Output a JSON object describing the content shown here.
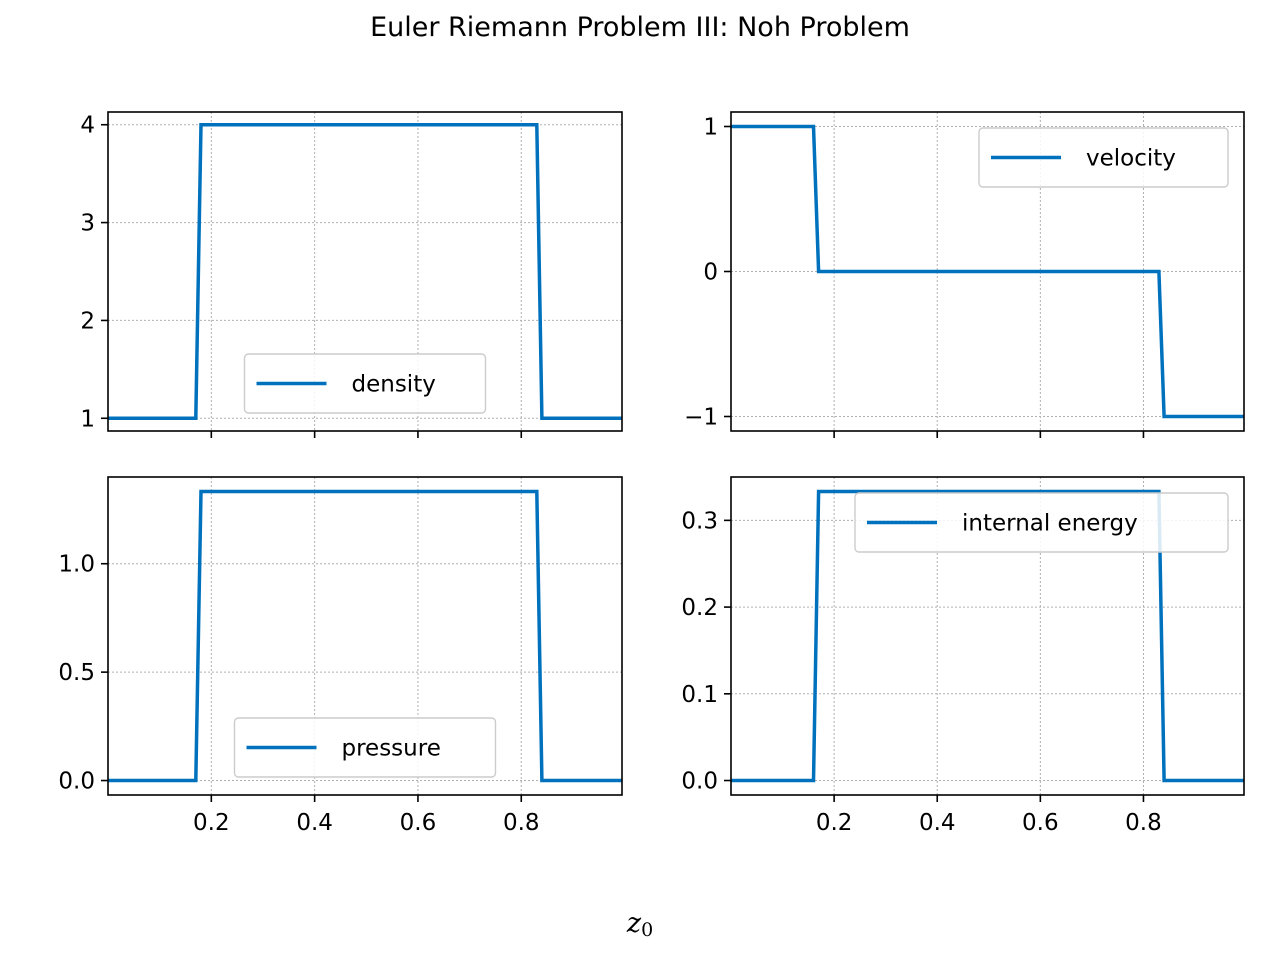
{
  "figure": {
    "title": "Euler Riemann Problem III: Noh Problem",
    "xlabel_main": "z",
    "xlabel_sub": "0"
  },
  "line_color": "#0072bd",
  "chart_data": [
    {
      "type": "line",
      "series": [
        {
          "name": "density",
          "x": [
            0.0,
            0.17,
            0.18,
            0.83,
            0.84,
            1.0
          ],
          "y": [
            1,
            1,
            4,
            4,
            1,
            1
          ]
        }
      ],
      "xlim": [
        0.0,
        0.995
      ],
      "ylim": [
        0.87,
        4.13
      ],
      "xticks": [
        0.2,
        0.4,
        0.6,
        0.8
      ],
      "xticklabels": [
        "",
        "",
        "",
        ""
      ],
      "yticks": [
        1,
        2,
        3,
        4
      ],
      "yticklabels": [
        "1",
        "2",
        "3",
        "4"
      ],
      "grid": true,
      "legend_position": "lower-center"
    },
    {
      "type": "line",
      "series": [
        {
          "name": "velocity",
          "x": [
            0.0,
            0.16,
            0.17,
            0.83,
            0.84,
            1.0
          ],
          "y": [
            1,
            1,
            0,
            0,
            -1,
            -1
          ]
        }
      ],
      "xlim": [
        0.0,
        0.995
      ],
      "ylim": [
        -1.1,
        1.1
      ],
      "xticks": [
        0.2,
        0.4,
        0.6,
        0.8
      ],
      "xticklabels": [
        "",
        "",
        "",
        ""
      ],
      "yticks": [
        -1,
        0,
        1
      ],
      "yticklabels": [
        "−1",
        "0",
        "1"
      ],
      "grid": true,
      "legend_position": "upper-right"
    },
    {
      "type": "line",
      "series": [
        {
          "name": "pressure",
          "x": [
            0.0,
            0.17,
            0.18,
            0.83,
            0.84,
            1.0
          ],
          "y": [
            0,
            0,
            1.3333,
            1.3333,
            0,
            0
          ]
        }
      ],
      "xlim": [
        0.0,
        0.995
      ],
      "ylim": [
        -0.0667,
        1.4
      ],
      "xticks": [
        0.2,
        0.4,
        0.6,
        0.8
      ],
      "xticklabels": [
        "0.2",
        "0.4",
        "0.6",
        "0.8"
      ],
      "yticks": [
        0.0,
        0.5,
        1.0
      ],
      "yticklabels": [
        "0.0",
        "0.5",
        "1.0"
      ],
      "grid": true,
      "legend_position": "lower-center"
    },
    {
      "type": "line",
      "series": [
        {
          "name": "internal energy",
          "x": [
            0.0,
            0.16,
            0.17,
            0.83,
            0.84,
            1.0
          ],
          "y": [
            0,
            0,
            0.3333,
            0.3333,
            0,
            0
          ]
        }
      ],
      "xlim": [
        0.0,
        0.995
      ],
      "ylim": [
        -0.0167,
        0.35
      ],
      "xticks": [
        0.2,
        0.4,
        0.6,
        0.8
      ],
      "xticklabels": [
        "0.2",
        "0.4",
        "0.6",
        "0.8"
      ],
      "yticks": [
        0.0,
        0.1,
        0.2,
        0.3
      ],
      "yticklabels": [
        "0.0",
        "0.1",
        "0.2",
        "0.3"
      ],
      "grid": true,
      "legend_position": "upper-right"
    }
  ]
}
